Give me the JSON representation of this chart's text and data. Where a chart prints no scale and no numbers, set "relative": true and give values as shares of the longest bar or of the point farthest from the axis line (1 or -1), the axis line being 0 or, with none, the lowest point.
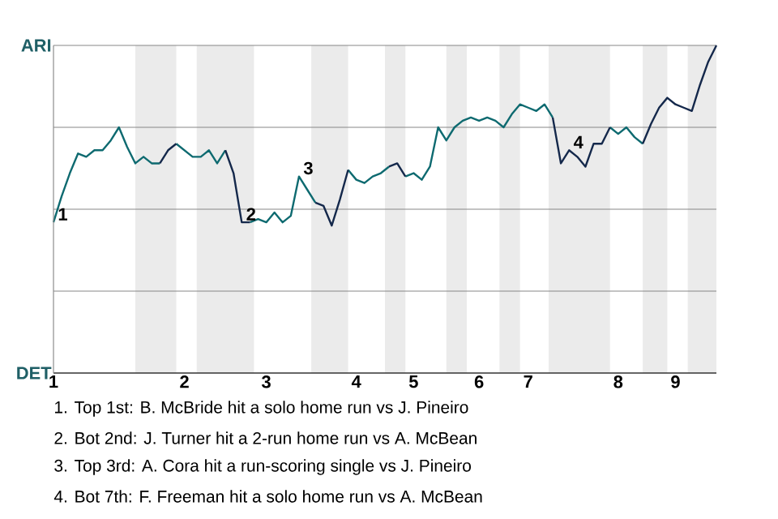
{
  "chart_data": {
    "type": "line",
    "relative": true,
    "categories": [
      "1",
      null,
      null,
      null,
      null,
      null,
      null,
      null,
      null,
      null,
      null,
      null,
      null,
      null,
      null,
      null,
      "2",
      null,
      null,
      null,
      null,
      null,
      null,
      null,
      null,
      null,
      "3",
      null,
      null,
      null,
      null,
      null,
      null,
      null,
      null,
      null,
      null,
      "4",
      null,
      null,
      null,
      null,
      null,
      null,
      "5",
      null,
      null,
      null,
      null,
      null,
      null,
      null,
      "6",
      null,
      null,
      null,
      null,
      null,
      "7",
      null,
      null,
      null,
      null,
      null,
      null,
      null,
      null,
      null,
      null,
      "8",
      null,
      null,
      null,
      null,
      null,
      null,
      "9",
      null,
      null,
      null,
      null,
      null
    ],
    "series": [
      {
        "color": "#0e6a70",
        "values": [
          0.46,
          0.54,
          0.61,
          0.67,
          0.66,
          0.68,
          0.68,
          0.71,
          0.75,
          0.69,
          0.64,
          0.66,
          0.64,
          0.64,
          null,
          0.7,
          0.68,
          0.66,
          0.66,
          0.68,
          0.64,
          0.68,
          null,
          null,
          0.46,
          0.47,
          0.46,
          0.49,
          0.46,
          0.48,
          0.6,
          0.56,
          0.52,
          null,
          null,
          null,
          0.62,
          0.59,
          0.58,
          0.6,
          0.61,
          0.63,
          null,
          0.6,
          0.61,
          0.59,
          0.63,
          0.75,
          0.71,
          0.75,
          0.77,
          0.78,
          0.77,
          0.78,
          0.77,
          0.75,
          0.79,
          0.82,
          0.81,
          0.8,
          0.82,
          0.78,
          null,
          null,
          null,
          null,
          null,
          null,
          0.75,
          0.73,
          0.75,
          0.72,
          0.7,
          null,
          null,
          null,
          null,
          null,
          null,
          null,
          null,
          null
        ]
      },
      {
        "color": "#14284b",
        "values": [
          null,
          null,
          null,
          null,
          null,
          null,
          null,
          null,
          null,
          null,
          null,
          null,
          null,
          0.64,
          0.68,
          0.7,
          null,
          null,
          null,
          null,
          null,
          0.68,
          0.61,
          0.46,
          0.46,
          null,
          null,
          null,
          null,
          null,
          null,
          null,
          0.52,
          0.51,
          0.45,
          0.53,
          0.62,
          null,
          null,
          null,
          null,
          0.63,
          0.64,
          0.6,
          null,
          null,
          null,
          null,
          null,
          null,
          null,
          null,
          null,
          null,
          null,
          null,
          null,
          null,
          null,
          null,
          null,
          0.78,
          0.64,
          0.68,
          0.66,
          0.63,
          0.7,
          0.7,
          0.75,
          null,
          null,
          null,
          0.7,
          0.76,
          0.81,
          0.84,
          0.82,
          0.81,
          0.8,
          0.88,
          0.95,
          1.0
        ]
      }
    ],
    "ref_lines": [
      {
        "axis": "y",
        "value": 0.25,
        "color": "#888888"
      },
      {
        "axis": "y",
        "value": 0.5,
        "color": "#888888"
      },
      {
        "axis": "y",
        "value": 0.75,
        "color": "#888888"
      },
      {
        "axis": "y",
        "value": 1,
        "color": "#888888"
      }
    ],
    "annotations": [
      "ARI",
      "DET",
      {
        "text": "1",
        "x": "1",
        "y": 0.46
      },
      {
        "text": "2",
        "y": 0.46
      },
      {
        "text": "3",
        "y": 0.6
      },
      {
        "text": "4",
        "y": 0.68
      },
      "1. Top 1st: B. McBride hit a solo home run vs J. Pineiro",
      "2. Bot 2nd: J. Turner hit a 2-run home run vs A. McBean",
      "3. Top 3rd: A. Cora hit a run-scoring single vs J. Pineiro",
      "4. Bot 7th: F. Freeman hit a solo home run vs A. McBean"
    ]
  }
}
